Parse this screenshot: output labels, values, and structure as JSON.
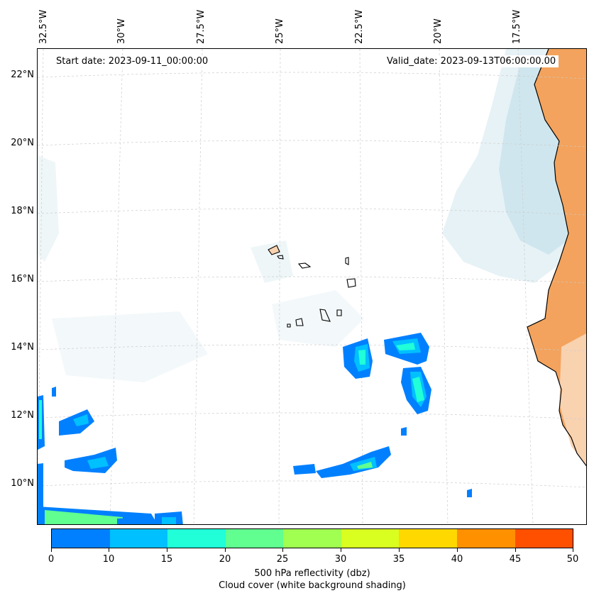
{
  "map": {
    "start_date": "Start date: 2023-09-11_00:00:00",
    "valid_date": "Valid_date: 2023-09-13T06:00:00.00",
    "lon_labels": [
      "32.5°W",
      "30°W",
      "27.5°W",
      "25°W",
      "22.5°W",
      "20°W",
      "17.5°W"
    ],
    "lat_labels": [
      "22°N",
      "20°N",
      "18°N",
      "16°N",
      "14°N",
      "12°N",
      "10°N"
    ],
    "colors": {
      "land": "#f3a35d",
      "land_light": "#f9d2b0",
      "cloud": "#cfe6ee",
      "coast": "#000000",
      "grid": "#cccccc"
    }
  },
  "colorbar": {
    "tick_labels": [
      "0",
      "10",
      "15",
      "20",
      "25",
      "30",
      "35",
      "40",
      "45",
      "50"
    ],
    "colors": [
      "#0080ff",
      "#00c0ff",
      "#20ffd8",
      "#60ff90",
      "#a0ff50",
      "#d8ff20",
      "#ffd800",
      "#ff9000",
      "#ff5000"
    ],
    "label_line1": "500 hPa reflectivity (dbz)",
    "label_line2": "Cloud cover (white background shading)"
  }
}
